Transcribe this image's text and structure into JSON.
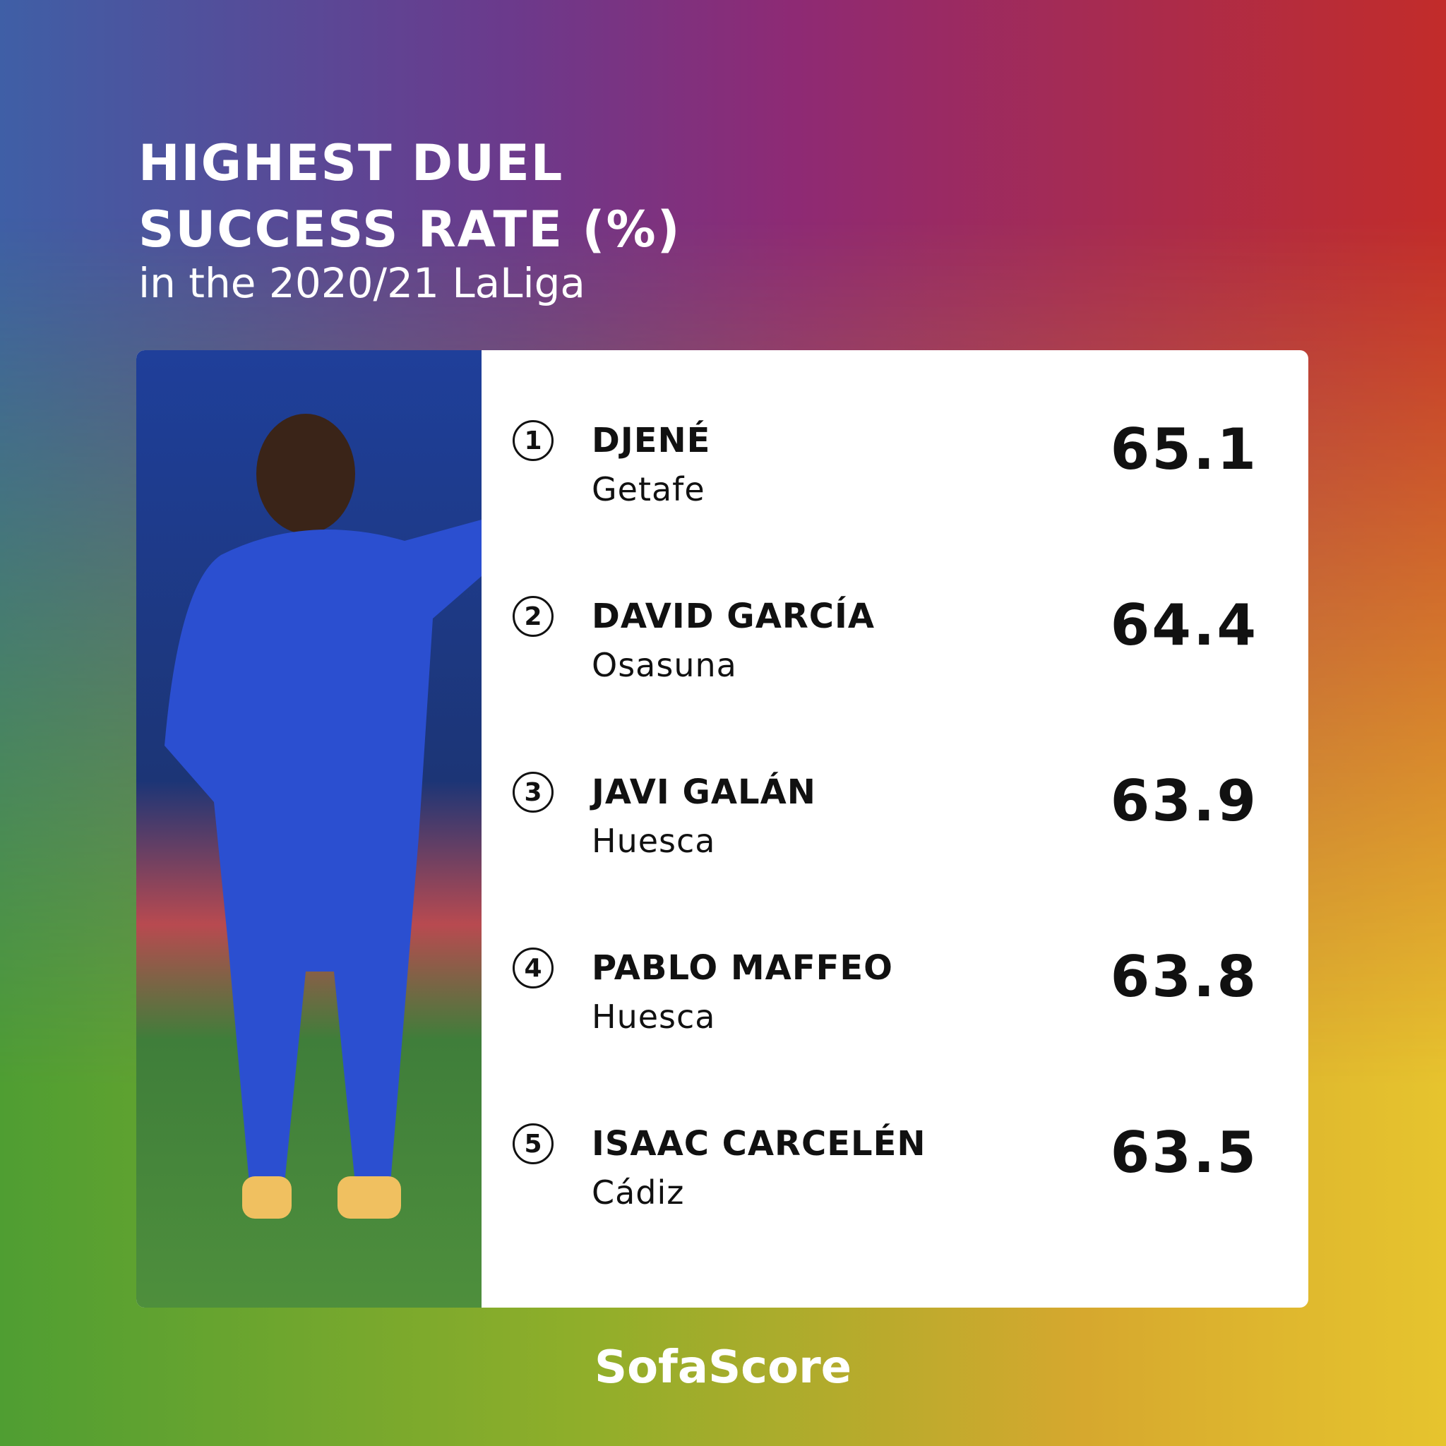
{
  "header": {
    "title_lines": [
      "HIGHEST DUEL",
      "SUCCESS RATE (%)"
    ],
    "subtitle": "in the 2020/21 LaLiga"
  },
  "ranking": {
    "rows": [
      {
        "rank": 1,
        "name": "DJENÉ",
        "team": "Getafe",
        "value": 65.1
      },
      {
        "rank": 2,
        "name": "DAVID GARCÍA",
        "team": "Osasuna",
        "value": 64.4
      },
      {
        "rank": 3,
        "name": "JAVI GALÁN",
        "team": "Huesca",
        "value": 63.9
      },
      {
        "rank": 4,
        "name": "PABLO MAFFEO",
        "team": "Huesca",
        "value": 63.8
      },
      {
        "rank": 5,
        "name": "ISAAC CARCELÉN",
        "team": "Cádiz",
        "value": 63.5
      }
    ]
  },
  "footer": {
    "brand": "SofaScore"
  }
}
